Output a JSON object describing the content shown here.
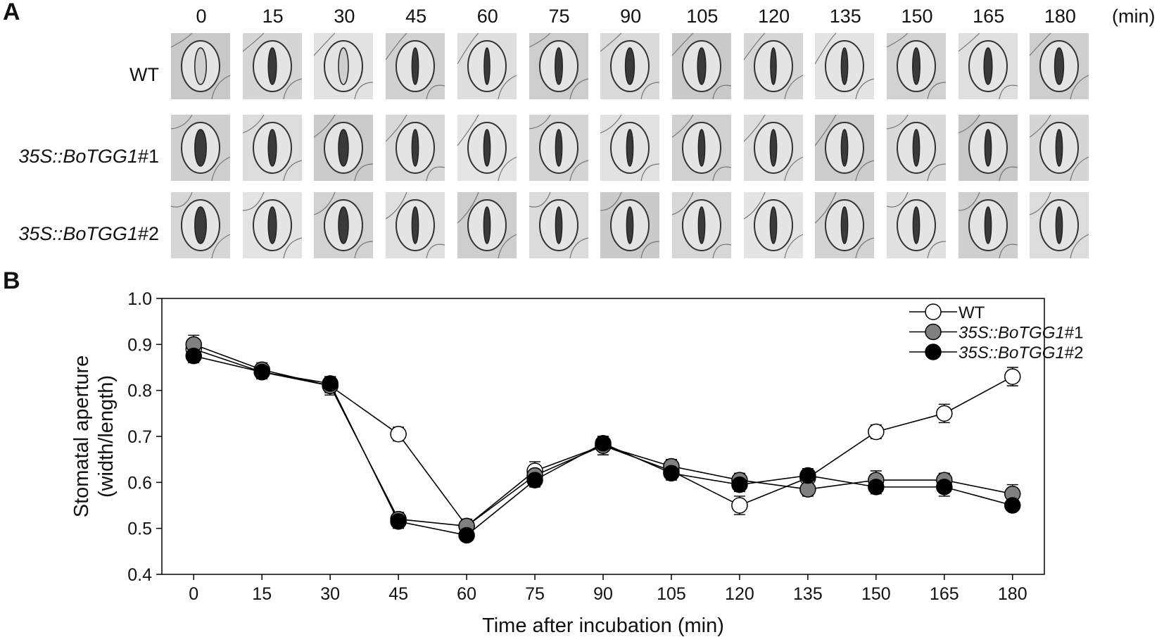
{
  "panel_a": {
    "label": "A",
    "unit": "(min)",
    "time_points": [
      "0",
      "15",
      "30",
      "45",
      "60",
      "75",
      "90",
      "105",
      "120",
      "135",
      "150",
      "165",
      "180"
    ],
    "rows": [
      {
        "label_plain": "WT",
        "label_italic": "",
        "label_suffix": ""
      },
      {
        "label_plain": "",
        "label_italic": "35S::BoTGG1",
        "label_suffix": "#1"
      },
      {
        "label_plain": "",
        "label_italic": "35S::BoTGG1",
        "label_suffix": "#2"
      }
    ]
  },
  "panel_b": {
    "label": "B"
  },
  "chart_data": {
    "type": "line",
    "xlabel": "Time after incubation (min)",
    "ylabel": [
      "Stomatal aperture",
      "(width/length)"
    ],
    "x": [
      0,
      15,
      30,
      45,
      60,
      75,
      90,
      105,
      120,
      135,
      150,
      165,
      180
    ],
    "xlim": [
      -7,
      187
    ],
    "ylim": [
      0.4,
      1.0
    ],
    "yticks": [
      "0.4",
      "0.5",
      "0.6",
      "0.7",
      "0.8",
      "0.9",
      "1.0"
    ],
    "grid": false,
    "legend_position": "top-right",
    "series": [
      {
        "name": "WT",
        "name_italic": "",
        "name_suffix": "",
        "marker_fill": "#ffffff",
        "values": [
          0.89,
          0.84,
          0.81,
          0.705,
          0.505,
          0.625,
          0.68,
          0.625,
          0.55,
          0.61,
          0.71,
          0.75,
          0.83
        ],
        "errors": [
          0.02,
          0.015,
          0.02,
          0.015,
          0.015,
          0.02,
          0.02,
          0.015,
          0.02,
          0.015,
          0.015,
          0.02,
          0.02
        ]
      },
      {
        "name": "",
        "name_italic": "35S::BoTGG1",
        "name_suffix": "#1",
        "marker_fill": "#808080",
        "values": [
          0.9,
          0.845,
          0.81,
          0.52,
          0.505,
          0.615,
          0.68,
          0.635,
          0.605,
          0.585,
          0.605,
          0.605,
          0.575
        ],
        "errors": [
          0.02,
          0.015,
          0.015,
          0.015,
          0.015,
          0.02,
          0.02,
          0.015,
          0.015,
          0.015,
          0.02,
          0.015,
          0.02
        ]
      },
      {
        "name": "",
        "name_italic": "35S::BoTGG1",
        "name_suffix": "#2",
        "marker_fill": "#000000",
        "values": [
          0.875,
          0.84,
          0.815,
          0.515,
          0.485,
          0.605,
          0.685,
          0.62,
          0.595,
          0.615,
          0.59,
          0.59,
          0.55
        ],
        "errors": [
          0.015,
          0.015,
          0.015,
          0.015,
          0.01,
          0.015,
          0.015,
          0.015,
          0.015,
          0.015,
          0.015,
          0.02,
          0.01
        ]
      }
    ]
  }
}
